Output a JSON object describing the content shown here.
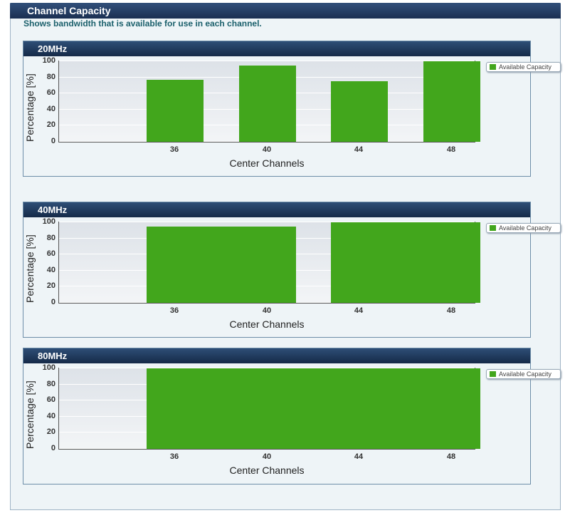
{
  "page": {
    "title": "Channel Capacity",
    "subtitle": "Shows bandwidth that is available for use in each channel."
  },
  "colors": {
    "bar": "#42a61c",
    "header": "#1a2f52",
    "subtitle": "#1a5f6b"
  },
  "legend_label": "Available Capacity",
  "chart_data": [
    {
      "type": "bar",
      "title": "20MHz",
      "xlabel": "Center Channels",
      "ylabel": "Percentage [%]",
      "ylim": [
        0,
        100
      ],
      "yticks": [
        "0",
        "20",
        "40",
        "60",
        "80",
        "100"
      ],
      "categories": [
        "36",
        "40",
        "44",
        "48"
      ],
      "series": [
        {
          "name": "Available Capacity",
          "bars": [
            {
              "from": "36",
              "to": "36",
              "value": 77
            },
            {
              "from": "40",
              "to": "40",
              "value": 95
            },
            {
              "from": "44",
              "to": "44",
              "value": 75
            },
            {
              "from": "48",
              "to": "48",
              "value": 100
            }
          ]
        }
      ],
      "grid": true,
      "legend": "right"
    },
    {
      "type": "bar",
      "title": "40MHz",
      "xlabel": "Center Channels",
      "ylabel": "Percentage [%]",
      "ylim": [
        0,
        100
      ],
      "yticks": [
        "0",
        "20",
        "40",
        "60",
        "80",
        "100"
      ],
      "categories": [
        "36",
        "40",
        "44",
        "48"
      ],
      "series": [
        {
          "name": "Available Capacity",
          "bars": [
            {
              "from": "36",
              "to": "40",
              "value": 95
            },
            {
              "from": "44",
              "to": "48",
              "value": 100
            }
          ]
        }
      ],
      "grid": true,
      "legend": "right"
    },
    {
      "type": "bar",
      "title": "80MHz",
      "xlabel": "Center Channels",
      "ylabel": "Percentage [%]",
      "ylim": [
        0,
        100
      ],
      "yticks": [
        "0",
        "20",
        "40",
        "60",
        "80",
        "100"
      ],
      "categories": [
        "36",
        "40",
        "44",
        "48"
      ],
      "series": [
        {
          "name": "Available Capacity",
          "bars": [
            {
              "from": "36",
              "to": "48",
              "value": 100
            }
          ]
        }
      ],
      "grid": true,
      "legend": "right"
    }
  ]
}
